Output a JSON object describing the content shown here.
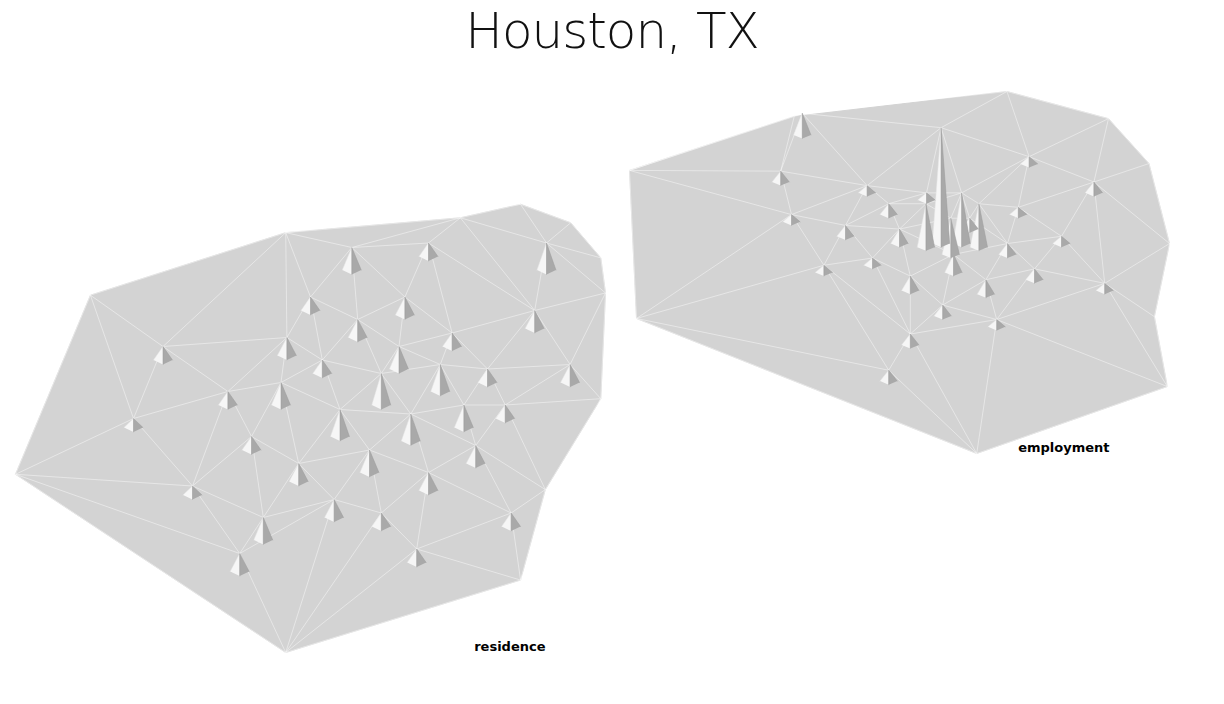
{
  "title": "Houston, TX",
  "chart_data": [
    {
      "type": "surface",
      "title": "residence",
      "xlim": [
        0,
        100
      ],
      "ylim": [
        0,
        100
      ],
      "tick_labels": false,
      "color": "#d3d3d3",
      "boundary": [
        [
          0,
          39.6
        ],
        [
          12.7,
          79.4
        ],
        [
          45.8,
          93.3
        ],
        [
          75.4,
          96.6
        ],
        [
          85.6,
          99.6
        ],
        [
          94.1,
          95.5
        ],
        [
          99.2,
          87.7
        ],
        [
          100,
          79.9
        ],
        [
          99.2,
          56.4
        ],
        [
          89.8,
          36.2
        ],
        [
          85.6,
          16.1
        ],
        [
          45.8,
          0
        ]
      ],
      "points": [
        [
          40,
          45,
          3
        ],
        [
          45,
          55,
          5
        ],
        [
          48,
          38,
          4
        ],
        [
          52,
          62,
          3
        ],
        [
          55,
          48,
          6
        ],
        [
          58,
          70,
          4
        ],
        [
          60,
          40,
          5
        ],
        [
          62,
          55,
          7
        ],
        [
          65,
          63,
          5
        ],
        [
          67,
          47,
          6
        ],
        [
          70,
          36,
          4
        ],
        [
          72,
          58,
          6
        ],
        [
          74,
          68,
          3
        ],
        [
          76,
          50,
          5
        ],
        [
          78,
          42,
          4
        ],
        [
          80,
          60,
          3
        ],
        [
          54,
          30,
          4
        ],
        [
          62,
          28,
          3
        ],
        [
          46,
          66,
          4
        ],
        [
          50,
          76,
          3
        ],
        [
          66,
          75,
          4
        ],
        [
          83,
          52,
          3
        ],
        [
          36,
          55,
          3
        ],
        [
          42,
          25,
          5
        ],
        [
          30,
          35,
          2
        ],
        [
          88,
          72,
          4
        ],
        [
          25,
          65,
          3
        ],
        [
          57,
          85,
          5
        ],
        [
          84,
          28,
          3
        ],
        [
          38,
          18,
          4
        ],
        [
          70,
          88,
          3
        ],
        [
          90,
          85,
          6
        ],
        [
          20,
          50,
          2
        ],
        [
          68,
          20,
          3
        ],
        [
          94,
          60,
          4
        ]
      ]
    },
    {
      "type": "surface",
      "title": "employment",
      "xlim": [
        0,
        100
      ],
      "ylim": [
        0,
        100
      ],
      "tick_labels": false,
      "color": "#d3d3d3",
      "boundary": [
        [
          0,
          78.2
        ],
        [
          1.3,
          37.3
        ],
        [
          64.3,
          0
        ],
        [
          99.6,
          18.5
        ],
        [
          97.2,
          37.8
        ],
        [
          100,
          58
        ],
        [
          96.2,
          80.1
        ],
        [
          88.7,
          92.5
        ],
        [
          69.9,
          100
        ],
        [
          30.5,
          93.1
        ]
      ],
      "points": [
        [
          40,
          60,
          3
        ],
        [
          45,
          52,
          2
        ],
        [
          48,
          66,
          3
        ],
        [
          52,
          45,
          4
        ],
        [
          55,
          70,
          2
        ],
        [
          60,
          50,
          5
        ],
        [
          63,
          62,
          3
        ],
        [
          66,
          44,
          4
        ],
        [
          70,
          55,
          3
        ],
        [
          72,
          66,
          2
        ],
        [
          75,
          48,
          3
        ],
        [
          50,
          58,
          4
        ],
        [
          58,
          38,
          3
        ],
        [
          44,
          72,
          2
        ],
        [
          68,
          35,
          2
        ],
        [
          36,
          50,
          2
        ],
        [
          80,
          58,
          2
        ],
        [
          52,
          30,
          3
        ],
        [
          48,
          20,
          3
        ],
        [
          30,
          64,
          2
        ],
        [
          86,
          72,
          3
        ],
        [
          88,
          45,
          2
        ],
        [
          28,
          75,
          3
        ],
        [
          74,
          80,
          2
        ],
        [
          57.7,
          58,
          32
        ],
        [
          61.5,
          58,
          14
        ],
        [
          54.9,
          57,
          12
        ],
        [
          59.5,
          55,
          10
        ],
        [
          64.7,
          57,
          12
        ],
        [
          32,
          88,
          6
        ]
      ]
    }
  ]
}
